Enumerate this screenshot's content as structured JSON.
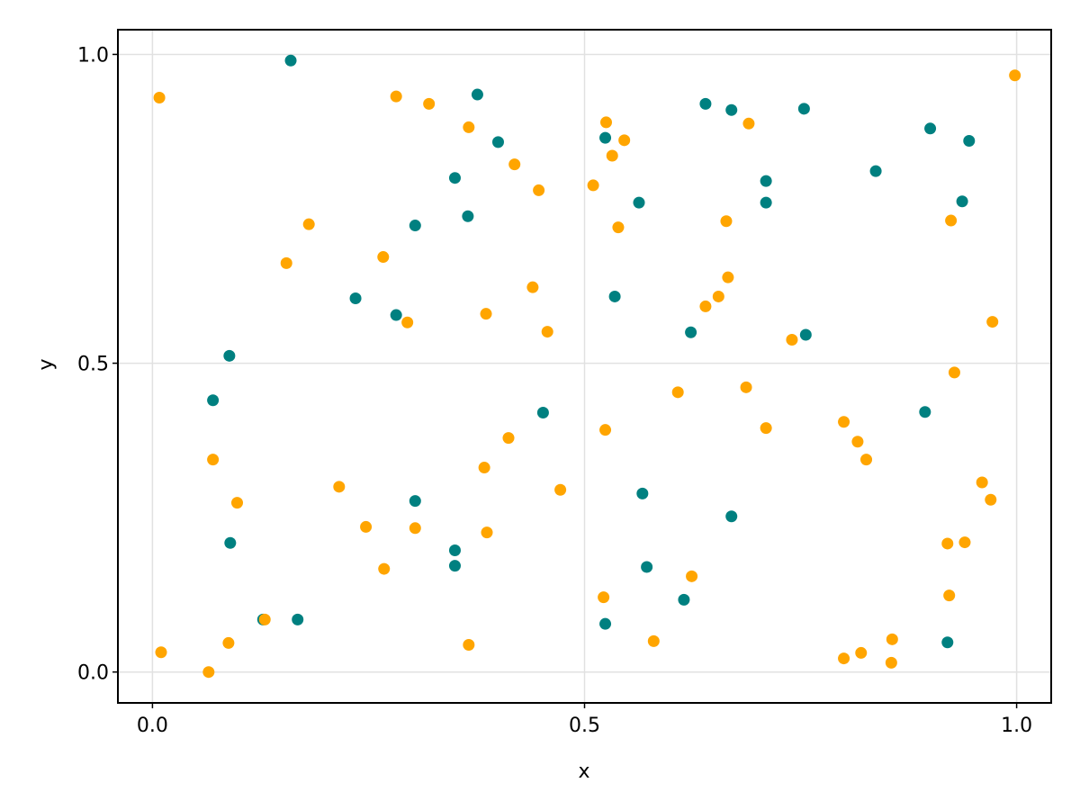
{
  "chart_data": {
    "type": "scatter",
    "title": "",
    "xlabel": "x",
    "ylabel": "y",
    "xlim": [
      -0.04,
      1.04
    ],
    "ylim": [
      -0.05,
      1.04
    ],
    "xticks": [
      0.0,
      0.5,
      1.0
    ],
    "xtick_labels": [
      "0.0",
      "0.5",
      "1.0"
    ],
    "yticks": [
      0.0,
      0.5,
      1.0
    ],
    "ytick_labels": [
      "0.0",
      "0.5",
      "1.0"
    ],
    "grid": true,
    "legend": "none",
    "series": [
      {
        "color": "#008080",
        "points": [
          [
            0.16,
            0.99
          ],
          [
            0.376,
            0.935
          ],
          [
            0.089,
            0.512
          ],
          [
            0.07,
            0.44
          ],
          [
            0.09,
            0.209
          ],
          [
            0.128,
            0.085
          ],
          [
            0.168,
            0.085
          ],
          [
            0.235,
            0.605
          ],
          [
            0.282,
            0.578
          ],
          [
            0.304,
            0.723
          ],
          [
            0.304,
            0.277
          ],
          [
            0.35,
            0.8
          ],
          [
            0.35,
            0.197
          ],
          [
            0.35,
            0.172
          ],
          [
            0.365,
            0.738
          ],
          [
            0.4,
            0.858
          ],
          [
            0.452,
            0.42
          ],
          [
            0.524,
            0.865
          ],
          [
            0.535,
            0.608
          ],
          [
            0.524,
            0.078
          ],
          [
            0.563,
            0.76
          ],
          [
            0.567,
            0.289
          ],
          [
            0.572,
            0.17
          ],
          [
            0.623,
            0.55
          ],
          [
            0.615,
            0.117
          ],
          [
            0.64,
            0.92
          ],
          [
            0.67,
            0.91
          ],
          [
            0.67,
            0.252
          ],
          [
            0.71,
            0.795
          ],
          [
            0.71,
            0.76
          ],
          [
            0.754,
            0.912
          ],
          [
            0.756,
            0.546
          ],
          [
            0.837,
            0.811
          ],
          [
            0.894,
            0.421
          ],
          [
            0.9,
            0.88
          ],
          [
            0.92,
            0.048
          ],
          [
            0.937,
            0.762
          ],
          [
            0.945,
            0.86
          ]
        ]
      },
      {
        "color": "#FFA500",
        "points": [
          [
            0.008,
            0.93
          ],
          [
            0.01,
            0.032
          ],
          [
            0.065,
            0.0
          ],
          [
            0.07,
            0.344
          ],
          [
            0.088,
            0.047
          ],
          [
            0.098,
            0.274
          ],
          [
            0.13,
            0.085
          ],
          [
            0.155,
            0.662
          ],
          [
            0.181,
            0.725
          ],
          [
            0.216,
            0.3
          ],
          [
            0.247,
            0.235
          ],
          [
            0.267,
            0.672
          ],
          [
            0.268,
            0.167
          ],
          [
            0.282,
            0.932
          ],
          [
            0.295,
            0.566
          ],
          [
            0.304,
            0.233
          ],
          [
            0.32,
            0.92
          ],
          [
            0.366,
            0.882
          ],
          [
            0.366,
            0.044
          ],
          [
            0.384,
            0.331
          ],
          [
            0.386,
            0.58
          ],
          [
            0.387,
            0.226
          ],
          [
            0.412,
            0.379
          ],
          [
            0.419,
            0.822
          ],
          [
            0.44,
            0.623
          ],
          [
            0.447,
            0.78
          ],
          [
            0.457,
            0.551
          ],
          [
            0.472,
            0.295
          ],
          [
            0.51,
            0.788
          ],
          [
            0.522,
            0.121
          ],
          [
            0.524,
            0.392
          ],
          [
            0.525,
            0.89
          ],
          [
            0.532,
            0.836
          ],
          [
            0.539,
            0.72
          ],
          [
            0.546,
            0.861
          ],
          [
            0.58,
            0.05
          ],
          [
            0.608,
            0.453
          ],
          [
            0.624,
            0.155
          ],
          [
            0.64,
            0.592
          ],
          [
            0.655,
            0.608
          ],
          [
            0.664,
            0.73
          ],
          [
            0.666,
            0.639
          ],
          [
            0.687,
            0.461
          ],
          [
            0.69,
            0.888
          ],
          [
            0.71,
            0.395
          ],
          [
            0.74,
            0.538
          ],
          [
            0.8,
            0.405
          ],
          [
            0.8,
            0.022
          ],
          [
            0.816,
            0.373
          ],
          [
            0.82,
            0.031
          ],
          [
            0.826,
            0.344
          ],
          [
            0.855,
            0.015
          ],
          [
            0.856,
            0.053
          ],
          [
            0.92,
            0.208
          ],
          [
            0.922,
            0.124
          ],
          [
            0.924,
            0.731
          ],
          [
            0.928,
            0.485
          ],
          [
            0.94,
            0.21
          ],
          [
            0.96,
            0.307
          ],
          [
            0.97,
            0.279
          ],
          [
            0.972,
            0.567
          ],
          [
            0.998,
            0.966
          ]
        ]
      }
    ]
  }
}
